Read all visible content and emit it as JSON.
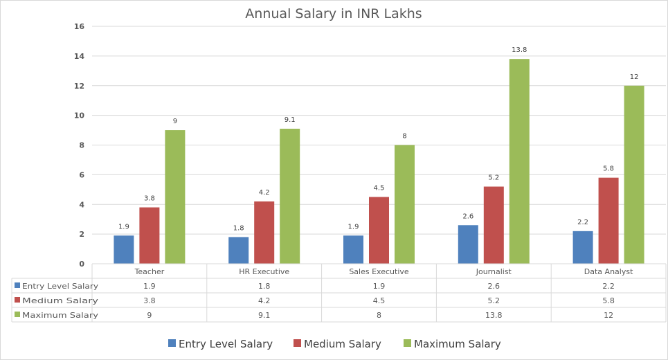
{
  "chart_data": {
    "type": "bar",
    "title": "Annual Salary in INR Lakhs",
    "xlabel": "",
    "ylabel": "",
    "ylim": [
      0,
      16
    ],
    "yticks": [
      0,
      2,
      4,
      6,
      8,
      10,
      12,
      14,
      16
    ],
    "grid": true,
    "legend_position": "bottom",
    "categories": [
      "Teacher",
      "HR Executive",
      "Sales Executive",
      "Journalist",
      "Data Analyst"
    ],
    "series": [
      {
        "name": "Entry Level Salary",
        "color": "#4f81bd",
        "values": [
          1.9,
          1.8,
          1.9,
          2.6,
          2.2
        ]
      },
      {
        "name": "Medium Salary",
        "color": "#c0504d",
        "values": [
          3.8,
          4.2,
          4.5,
          5.2,
          5.8
        ]
      },
      {
        "name": "Maximum Salary",
        "color": "#9bbb59",
        "values": [
          9,
          9.1,
          8,
          13.8,
          12
        ]
      }
    ],
    "data_table": true
  }
}
